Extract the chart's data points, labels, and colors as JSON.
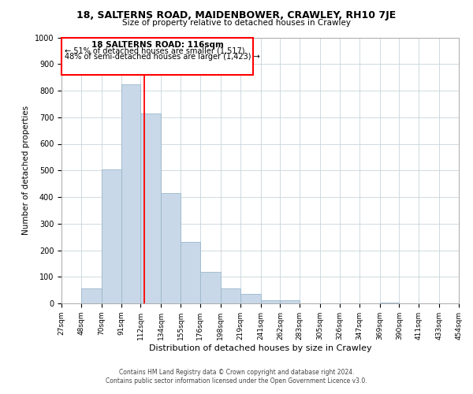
{
  "title": "18, SALTERNS ROAD, MAIDENBOWER, CRAWLEY, RH10 7JE",
  "subtitle": "Size of property relative to detached houses in Crawley",
  "xlabel": "Distribution of detached houses by size in Crawley",
  "ylabel": "Number of detached properties",
  "bin_edges": [
    27,
    48,
    70,
    91,
    112,
    134,
    155,
    176,
    198,
    219,
    241,
    262,
    283,
    305,
    326,
    347,
    369,
    390,
    411,
    433,
    454
  ],
  "bar_heights": [
    0,
    57,
    505,
    825,
    715,
    415,
    232,
    118,
    57,
    35,
    12,
    12,
    0,
    0,
    0,
    0,
    3,
    0,
    0,
    0
  ],
  "bar_color": "#c8d8e8",
  "bar_edgecolor": "#9ab8cc",
  "red_line_x": 116,
  "ylim": [
    0,
    1000
  ],
  "yticks": [
    0,
    100,
    200,
    300,
    400,
    500,
    600,
    700,
    800,
    900,
    1000
  ],
  "annotation_title": "18 SALTERNS ROAD: 116sqm",
  "annotation_line1": "← 51% of detached houses are smaller (1,517)",
  "annotation_line2": "48% of semi-detached houses are larger (1,423) →",
  "footer_line1": "Contains HM Land Registry data © Crown copyright and database right 2024.",
  "footer_line2": "Contains public sector information licensed under the Open Government Licence v3.0.",
  "background_color": "#ffffff",
  "grid_color": "#c8d4dc"
}
